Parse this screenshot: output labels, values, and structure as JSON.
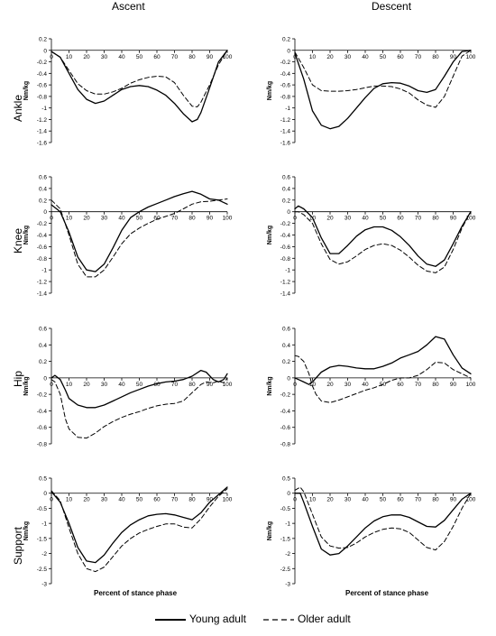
{
  "columns": [
    "Ascent",
    "Descent"
  ],
  "rows": [
    "Ankle",
    "Knee",
    "Hip",
    "Support"
  ],
  "unit_label": "Nm/kg",
  "x_axis_title": "Percent of stance phase",
  "legend": {
    "young": "Young adult",
    "older": "Older adult"
  },
  "colors": {
    "line": "#000000",
    "axis": "#000000"
  },
  "chart_data": [
    {
      "type": "line",
      "panel": "Ankle - Ascent",
      "x": [
        0,
        5,
        10,
        15,
        20,
        25,
        30,
        35,
        40,
        45,
        50,
        55,
        60,
        65,
        70,
        75,
        80,
        83,
        85,
        90,
        95,
        100
      ],
      "xlim": [
        0,
        100
      ],
      "ylim": [
        -1.6,
        0.2
      ],
      "yticks": [
        0.2,
        0,
        -0.2,
        -0.4,
        -0.6,
        -0.8,
        -1,
        -1.2,
        -1.4,
        -1.6
      ],
      "xticks": [
        0,
        10,
        20,
        30,
        40,
        50,
        60,
        70,
        80,
        90,
        100
      ],
      "series": [
        {
          "name": "Young adult",
          "dash": "solid",
          "values": [
            -0.02,
            -0.12,
            -0.4,
            -0.68,
            -0.85,
            -0.92,
            -0.88,
            -0.78,
            -0.68,
            -0.63,
            -0.61,
            -0.63,
            -0.69,
            -0.78,
            -0.92,
            -1.1,
            -1.24,
            -1.2,
            -1.08,
            -0.65,
            -0.2,
            0.0
          ]
        },
        {
          "name": "Older adult",
          "dash": "dashed",
          "values": [
            -0.02,
            -0.12,
            -0.35,
            -0.58,
            -0.7,
            -0.76,
            -0.76,
            -0.72,
            -0.66,
            -0.57,
            -0.51,
            -0.47,
            -0.45,
            -0.46,
            -0.56,
            -0.78,
            -0.97,
            -0.98,
            -0.9,
            -0.6,
            -0.25,
            0.0
          ]
        }
      ]
    },
    {
      "type": "line",
      "panel": "Ankle - Descent",
      "x": [
        0,
        5,
        10,
        15,
        20,
        25,
        30,
        35,
        40,
        45,
        50,
        55,
        60,
        65,
        70,
        75,
        80,
        85,
        90,
        95,
        100
      ],
      "xlim": [
        0,
        100
      ],
      "ylim": [
        -1.6,
        0.2
      ],
      "yticks": [
        0.2,
        0,
        -0.2,
        -0.4,
        -0.6,
        -0.8,
        -1,
        -1.2,
        -1.4,
        -1.6
      ],
      "xticks": [
        0,
        10,
        20,
        30,
        40,
        50,
        60,
        70,
        80,
        90,
        100
      ],
      "series": [
        {
          "name": "Young adult",
          "dash": "solid",
          "values": [
            -0.05,
            -0.5,
            -1.05,
            -1.3,
            -1.36,
            -1.32,
            -1.18,
            -1.0,
            -0.82,
            -0.66,
            -0.58,
            -0.56,
            -0.57,
            -0.62,
            -0.7,
            -0.73,
            -0.68,
            -0.45,
            -0.2,
            -0.02,
            0.0
          ]
        },
        {
          "name": "Older adult",
          "dash": "dashed",
          "values": [
            -0.03,
            -0.3,
            -0.6,
            -0.7,
            -0.71,
            -0.71,
            -0.7,
            -0.68,
            -0.65,
            -0.62,
            -0.62,
            -0.63,
            -0.67,
            -0.74,
            -0.86,
            -0.95,
            -0.99,
            -0.8,
            -0.45,
            -0.1,
            0.0
          ]
        }
      ]
    },
    {
      "type": "line",
      "panel": "Knee - Ascent",
      "x": [
        0,
        5,
        10,
        15,
        20,
        25,
        30,
        35,
        40,
        45,
        50,
        55,
        60,
        65,
        70,
        75,
        80,
        85,
        90,
        95,
        100
      ],
      "xlim": [
        0,
        100
      ],
      "ylim": [
        -1.4,
        0.6
      ],
      "yticks": [
        0.6,
        0.4,
        0.2,
        0,
        -0.2,
        -0.4,
        -0.6,
        -0.8,
        -1,
        -1.2,
        -1.4
      ],
      "xticks": [
        0,
        10,
        20,
        30,
        40,
        50,
        60,
        70,
        80,
        90,
        100
      ],
      "series": [
        {
          "name": "Young adult",
          "dash": "solid",
          "values": [
            0.12,
            0.0,
            -0.35,
            -0.78,
            -1.0,
            -1.03,
            -0.9,
            -0.62,
            -0.32,
            -0.1,
            0.0,
            0.08,
            0.14,
            0.2,
            0.26,
            0.31,
            0.35,
            0.3,
            0.22,
            0.2,
            0.13
          ]
        },
        {
          "name": "Older adult",
          "dash": "dashed",
          "values": [
            0.2,
            0.05,
            -0.4,
            -0.9,
            -1.12,
            -1.12,
            -1.0,
            -0.78,
            -0.55,
            -0.38,
            -0.28,
            -0.2,
            -0.13,
            -0.08,
            -0.03,
            0.05,
            0.13,
            0.17,
            0.18,
            0.2,
            0.22
          ]
        }
      ]
    },
    {
      "type": "line",
      "panel": "Knee - Descent",
      "x": [
        0,
        2,
        5,
        10,
        15,
        20,
        25,
        30,
        35,
        40,
        45,
        50,
        55,
        60,
        65,
        70,
        75,
        80,
        85,
        90,
        95,
        100
      ],
      "xlim": [
        0,
        100
      ],
      "ylim": [
        -1.4,
        0.6
      ],
      "yticks": [
        0.6,
        0.4,
        0.2,
        0,
        -0.2,
        -0.4,
        -0.6,
        -0.8,
        -1,
        -1.2,
        -1.4
      ],
      "xticks": [
        0,
        10,
        20,
        30,
        40,
        50,
        60,
        70,
        80,
        90,
        100
      ],
      "series": [
        {
          "name": "Young adult",
          "dash": "solid",
          "values": [
            0.05,
            0.1,
            0.05,
            -0.1,
            -0.45,
            -0.72,
            -0.72,
            -0.58,
            -0.42,
            -0.31,
            -0.26,
            -0.26,
            -0.32,
            -0.43,
            -0.58,
            -0.76,
            -0.9,
            -0.94,
            -0.83,
            -0.55,
            -0.25,
            0.0
          ]
        },
        {
          "name": "Older adult",
          "dash": "dashed",
          "values": [
            0.0,
            0.0,
            -0.05,
            -0.2,
            -0.55,
            -0.82,
            -0.9,
            -0.86,
            -0.76,
            -0.65,
            -0.58,
            -0.55,
            -0.58,
            -0.66,
            -0.78,
            -0.92,
            -1.02,
            -1.05,
            -0.95,
            -0.65,
            -0.28,
            0.0
          ]
        }
      ]
    },
    {
      "type": "line",
      "panel": "Hip - Ascent",
      "x": [
        0,
        2,
        5,
        8,
        10,
        15,
        20,
        25,
        30,
        35,
        40,
        45,
        50,
        55,
        60,
        65,
        70,
        75,
        80,
        85,
        88,
        92,
        95,
        98,
        100
      ],
      "xlim": [
        0,
        100
      ],
      "ylim": [
        -0.8,
        0.6
      ],
      "yticks": [
        0.6,
        0.4,
        0.2,
        0,
        -0.2,
        -0.4,
        -0.6,
        -0.8
      ],
      "xticks": [
        0,
        10,
        20,
        30,
        40,
        50,
        60,
        70,
        80,
        90,
        100
      ],
      "series": [
        {
          "name": "Young adult",
          "dash": "solid",
          "values": [
            0.0,
            0.03,
            -0.02,
            -0.15,
            -0.25,
            -0.33,
            -0.36,
            -0.36,
            -0.33,
            -0.28,
            -0.23,
            -0.18,
            -0.14,
            -0.1,
            -0.07,
            -0.05,
            -0.04,
            -0.02,
            0.02,
            0.09,
            0.07,
            -0.02,
            -0.05,
            -0.02,
            0.05
          ]
        },
        {
          "name": "Older adult",
          "dash": "dashed",
          "values": [
            -0.02,
            -0.05,
            -0.2,
            -0.5,
            -0.62,
            -0.72,
            -0.73,
            -0.67,
            -0.59,
            -0.53,
            -0.48,
            -0.44,
            -0.41,
            -0.37,
            -0.34,
            -0.32,
            -0.31,
            -0.28,
            -0.18,
            -0.08,
            -0.05,
            -0.06,
            -0.04,
            -0.06,
            0.0
          ]
        }
      ]
    },
    {
      "type": "line",
      "panel": "Hip - Descent",
      "x": [
        0,
        2,
        5,
        8,
        10,
        12,
        15,
        20,
        25,
        30,
        35,
        40,
        45,
        50,
        55,
        60,
        65,
        70,
        75,
        80,
        85,
        90,
        95,
        100
      ],
      "xlim": [
        0,
        100
      ],
      "ylim": [
        -0.8,
        0.6
      ],
      "yticks": [
        0.6,
        0.4,
        0.2,
        0,
        -0.2,
        -0.4,
        -0.6,
        -0.8
      ],
      "xticks": [
        0,
        10,
        20,
        30,
        40,
        50,
        60,
        70,
        80,
        90,
        100
      ],
      "series": [
        {
          "name": "Young adult",
          "dash": "solid",
          "values": [
            0.0,
            -0.02,
            -0.05,
            -0.08,
            -0.05,
            0.0,
            0.07,
            0.13,
            0.15,
            0.14,
            0.12,
            0.11,
            0.11,
            0.14,
            0.18,
            0.24,
            0.28,
            0.32,
            0.4,
            0.5,
            0.47,
            0.28,
            0.12,
            0.05
          ]
        },
        {
          "name": "Older adult",
          "dash": "dashed",
          "values": [
            0.27,
            0.26,
            0.2,
            0.05,
            -0.1,
            -0.2,
            -0.28,
            -0.3,
            -0.27,
            -0.23,
            -0.19,
            -0.15,
            -0.12,
            -0.08,
            -0.03,
            0.0,
            0.0,
            0.03,
            0.1,
            0.19,
            0.18,
            0.1,
            0.05,
            0.0
          ]
        }
      ]
    },
    {
      "type": "line",
      "panel": "Support - Ascent",
      "x": [
        0,
        5,
        10,
        15,
        20,
        25,
        30,
        35,
        40,
        45,
        50,
        55,
        60,
        65,
        70,
        75,
        80,
        85,
        90,
        95,
        100
      ],
      "xlim": [
        0,
        100
      ],
      "ylim": [
        -3,
        0.5
      ],
      "yticks": [
        0.5,
        0,
        -0.5,
        -1,
        -1.5,
        -2,
        -2.5,
        -3
      ],
      "xticks": [
        0,
        10,
        20,
        30,
        40,
        50,
        60,
        70,
        80,
        90,
        100
      ],
      "series": [
        {
          "name": "Young adult",
          "dash": "solid",
          "values": [
            0.05,
            -0.3,
            -1.0,
            -1.8,
            -2.25,
            -2.3,
            -2.05,
            -1.65,
            -1.3,
            -1.05,
            -0.88,
            -0.75,
            -0.7,
            -0.68,
            -0.72,
            -0.8,
            -0.88,
            -0.65,
            -0.3,
            -0.05,
            0.2
          ]
        },
        {
          "name": "Older adult",
          "dash": "dashed",
          "values": [
            0.08,
            -0.25,
            -1.15,
            -2.0,
            -2.5,
            -2.6,
            -2.45,
            -2.1,
            -1.75,
            -1.5,
            -1.32,
            -1.2,
            -1.1,
            -1.02,
            -1.02,
            -1.12,
            -1.15,
            -0.85,
            -0.45,
            -0.1,
            0.15
          ]
        }
      ]
    },
    {
      "type": "line",
      "panel": "Support - Descent",
      "x": [
        0,
        3,
        5,
        10,
        15,
        20,
        25,
        30,
        35,
        40,
        45,
        50,
        55,
        60,
        65,
        70,
        75,
        80,
        85,
        90,
        95,
        100
      ],
      "xlim": [
        0,
        100
      ],
      "ylim": [
        -3,
        0.5
      ],
      "yticks": [
        0.5,
        0,
        -0.5,
        -1,
        -1.5,
        -2,
        -2.5,
        -3
      ],
      "xticks": [
        0,
        10,
        20,
        30,
        40,
        50,
        60,
        70,
        80,
        90,
        100
      ],
      "series": [
        {
          "name": "Young adult",
          "dash": "solid",
          "values": [
            0.0,
            0.0,
            -0.3,
            -1.1,
            -1.85,
            -2.05,
            -2.0,
            -1.75,
            -1.45,
            -1.15,
            -0.92,
            -0.78,
            -0.72,
            -0.72,
            -0.8,
            -0.95,
            -1.1,
            -1.12,
            -0.9,
            -0.55,
            -0.2,
            0.0
          ]
        },
        {
          "name": "Older adult",
          "dash": "dashed",
          "values": [
            0.1,
            0.2,
            0.05,
            -0.7,
            -1.45,
            -1.75,
            -1.82,
            -1.8,
            -1.65,
            -1.45,
            -1.3,
            -1.2,
            -1.15,
            -1.18,
            -1.3,
            -1.55,
            -1.8,
            -1.88,
            -1.6,
            -1.1,
            -0.5,
            0.0
          ]
        }
      ]
    }
  ]
}
